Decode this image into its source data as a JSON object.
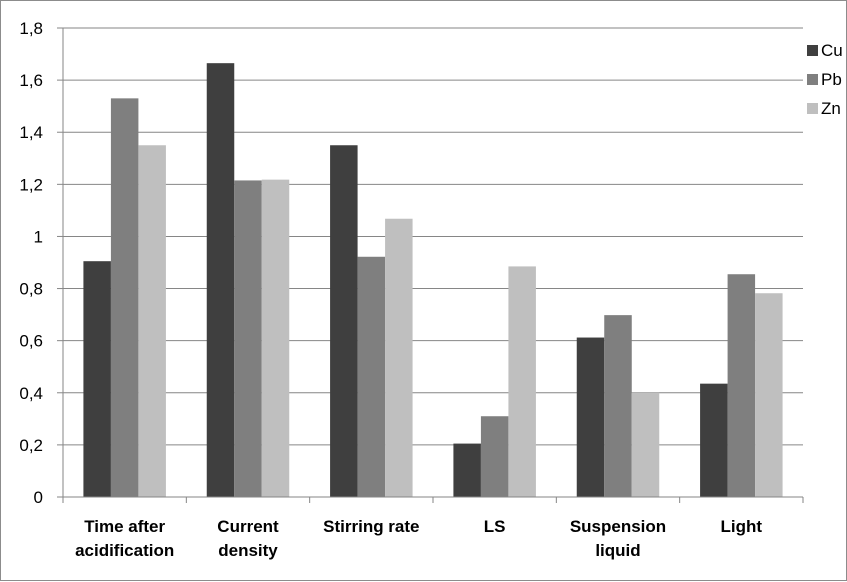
{
  "chart_data": {
    "type": "bar",
    "title": "",
    "xlabel": "",
    "ylabel": "",
    "ylim": [
      0,
      1.8
    ],
    "yticks": [
      "0",
      "0,2",
      "0,4",
      "0,6",
      "0,8",
      "1",
      "1,2",
      "1,4",
      "1,6",
      "1,8"
    ],
    "grid": true,
    "legend_position": "top-right",
    "categories": [
      [
        "Time after",
        "acidification"
      ],
      [
        "Current",
        "density"
      ],
      [
        "Stirring rate"
      ],
      [
        "LS"
      ],
      [
        "Suspension",
        "liquid"
      ],
      [
        "Light"
      ]
    ],
    "series": [
      {
        "name": "Cu",
        "color": "#3f3f3f",
        "values": [
          0.905,
          1.665,
          1.35,
          0.205,
          0.612,
          0.435
        ]
      },
      {
        "name": "Pb",
        "color": "#7f7f7f",
        "values": [
          1.53,
          1.215,
          0.922,
          0.31,
          0.698,
          0.855
        ]
      },
      {
        "name": "Zn",
        "color": "#bfbfbf",
        "values": [
          1.35,
          1.218,
          1.068,
          0.885,
          0.4,
          0.782
        ]
      }
    ]
  }
}
